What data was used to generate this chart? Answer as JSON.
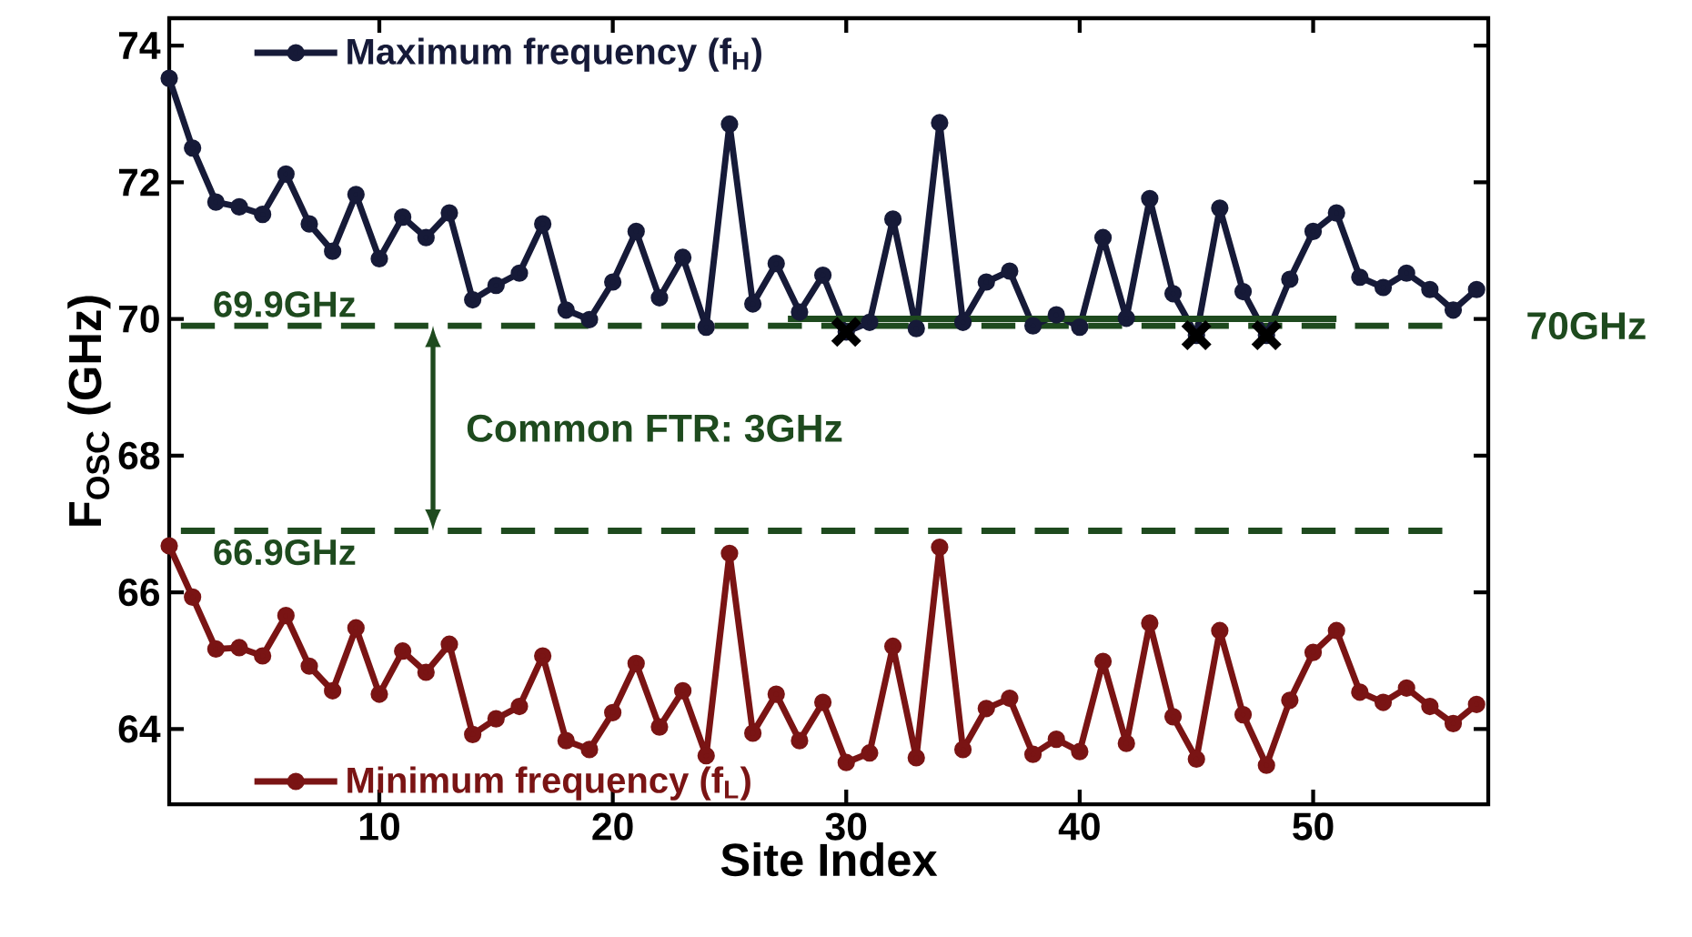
{
  "chart_data": {
    "type": "line",
    "xlabel": "Site Index",
    "ylabel": "F$_{OSC}$ (GHz)",
    "xlim": [
      1,
      57.5
    ],
    "ylim": [
      62.9,
      74.4
    ],
    "xticks": [
      10,
      20,
      30,
      40,
      50
    ],
    "yticks": [
      64,
      66,
      68,
      70,
      72,
      74
    ],
    "marker": "circle",
    "line_style": "solid",
    "legend": "left",
    "x": [
      1,
      2,
      3,
      4,
      5,
      6,
      7,
      8,
      9,
      10,
      11,
      12,
      13,
      14,
      15,
      16,
      17,
      18,
      19,
      20,
      21,
      22,
      23,
      24,
      25,
      26,
      27,
      28,
      29,
      30,
      31,
      32,
      33,
      34,
      35,
      36,
      37,
      38,
      39,
      40,
      41,
      42,
      43,
      44,
      45,
      46,
      47,
      48,
      49,
      50,
      51,
      52,
      53,
      54,
      55,
      56,
      57
    ],
    "series": [
      {
        "name": "Maximum frequency (f$_{H}$)",
        "color": "#161a38",
        "values": [
          73.52,
          72.5,
          71.71,
          71.64,
          71.53,
          72.12,
          71.39,
          70.99,
          71.82,
          70.88,
          71.49,
          71.19,
          71.55,
          70.28,
          70.49,
          70.67,
          71.39,
          70.13,
          69.99,
          70.54,
          71.28,
          70.31,
          70.9,
          69.88,
          72.85,
          70.22,
          70.81,
          70.1,
          70.64,
          69.81,
          69.95,
          71.46,
          69.86,
          72.87,
          69.95,
          70.54,
          70.7,
          69.9,
          70.06,
          69.88,
          71.19,
          70.01,
          71.76,
          70.37,
          69.76,
          71.62,
          70.4,
          69.76,
          70.58,
          71.28,
          71.55,
          70.61,
          70.46,
          70.67,
          70.43,
          70.13,
          70.43
        ]
      },
      {
        "name": "Minimum frequency (f$_{L}$)",
        "color": "#7a1414",
        "values": [
          66.68,
          65.93,
          65.17,
          65.19,
          65.07,
          65.66,
          64.92,
          64.56,
          65.48,
          64.51,
          65.14,
          64.83,
          65.24,
          63.92,
          64.15,
          64.33,
          65.07,
          63.83,
          63.7,
          64.24,
          64.96,
          64.03,
          64.56,
          63.61,
          66.57,
          63.94,
          64.51,
          63.83,
          64.39,
          63.51,
          63.65,
          65.21,
          63.58,
          66.66,
          63.7,
          64.3,
          64.45,
          63.63,
          63.85,
          63.67,
          64.99,
          63.79,
          65.55,
          64.18,
          63.56,
          65.44,
          64.21,
          63.47,
          64.42,
          65.12,
          65.44,
          64.54,
          64.39,
          64.6,
          64.33,
          64.08,
          64.36
        ]
      },
      {
        "type": "line",
        "marker": "none",
        "color": "#1e4a1e",
        "x": [
          27.5,
          51
        ],
        "values": [
          70,
          70
        ]
      },
      {
        "type": "scatter",
        "marker": "cross",
        "color": "#000000",
        "x": [
          30,
          45,
          48
        ],
        "values": [
          69.81,
          69.76,
          69.76
        ]
      }
    ],
    "ref_lines": [
      {
        "axis": "y",
        "value": 69.9,
        "label": "69.9GHz",
        "color": "#1e4a1e",
        "line_style": "dashed"
      },
      {
        "axis": "y",
        "value": 66.9,
        "label": "66.9GHz",
        "color": "#1e4a1e",
        "line_style": "dashed"
      }
    ],
    "annotations": [
      "70GHz",
      "Common FTR: 3GHz"
    ]
  }
}
